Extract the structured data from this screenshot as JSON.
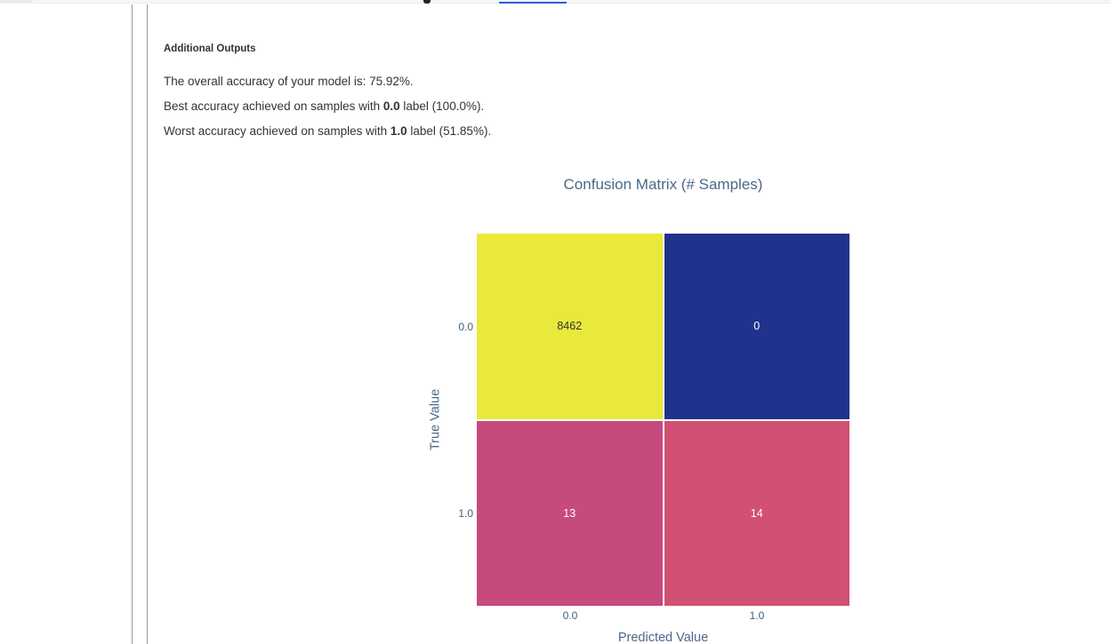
{
  "browser_chrome": {
    "strip_color": "#f6f6f6",
    "tab_color": "#ececec"
  },
  "clipped_header": {
    "link_underline_color": "#2e5bd9",
    "glyph_fragment_color": "#222222"
  },
  "outputs_panel": {
    "heading": "Additional Outputs",
    "overall_line": "The overall accuracy of your model is: 75.92%.",
    "best_line": {
      "prefix": "Best accuracy achieved on samples with ",
      "bold": "0.0",
      "suffix": " label (100.0%)."
    },
    "worst_line": {
      "prefix": "Worst accuracy achieved on samples with ",
      "bold": "1.0",
      "suffix": " label (51.85%)."
    }
  },
  "chart": {
    "title": "Confusion Matrix (# Samples)",
    "xlabel": "Predicted Value",
    "ylabel": "True Value",
    "x_ticks": [
      "0.0",
      "1.0"
    ],
    "y_ticks": [
      "0.0",
      "1.0"
    ],
    "text_color": "#4a698a",
    "cells": [
      {
        "value": "8462",
        "bg": "#e8e93a",
        "fg": "#333333"
      },
      {
        "value": "0",
        "bg": "#20338c",
        "fg": "#ffffff"
      },
      {
        "value": "13",
        "bg": "#c74a7e",
        "fg": "#ffffff"
      },
      {
        "value": "14",
        "bg": "#d15073",
        "fg": "#ffffff"
      }
    ]
  },
  "chart_data": {
    "type": "heatmap",
    "title": "Confusion Matrix (# Samples)",
    "xlabel": "Predicted Value",
    "ylabel": "True Value",
    "x": [
      "0.0",
      "1.0"
    ],
    "y": [
      "0.0",
      "1.0"
    ],
    "values": [
      [
        8462,
        0
      ],
      [
        13,
        14
      ]
    ],
    "cell_colors": [
      [
        "#e8e93a",
        "#20338c"
      ],
      [
        "#c74a7e",
        "#d15073"
      ]
    ],
    "legend": "none",
    "grid": false
  }
}
